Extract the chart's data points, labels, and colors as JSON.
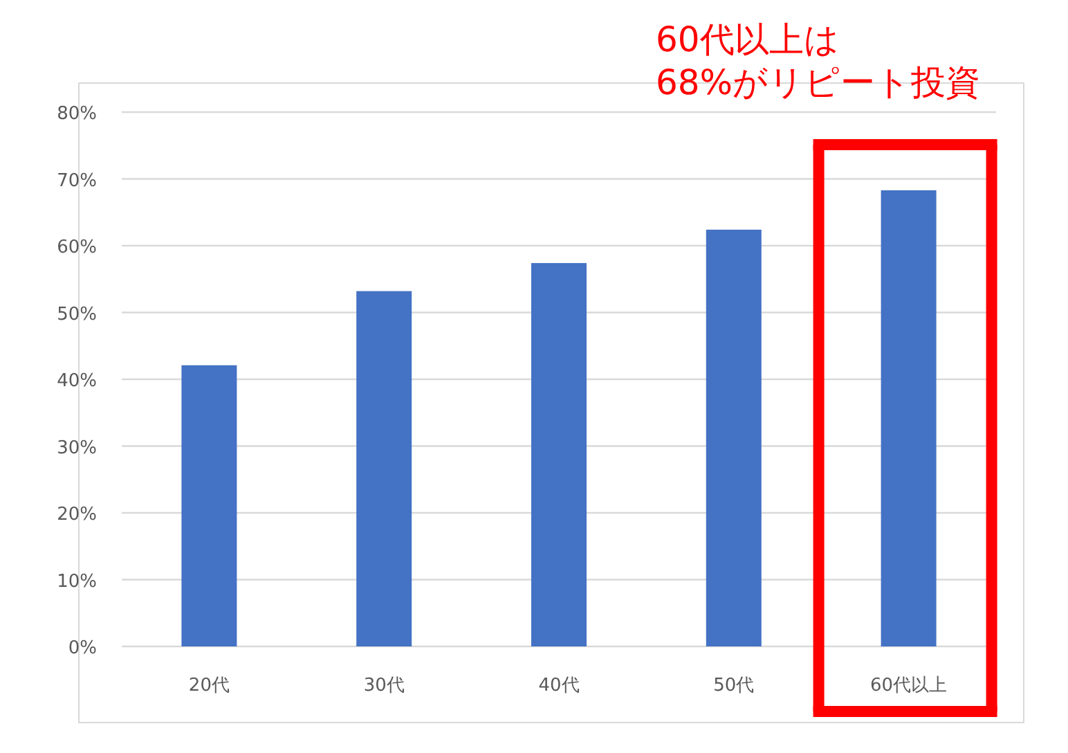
{
  "chart_data": {
    "type": "bar",
    "categories": [
      "20代",
      "30代",
      "40代",
      "50代",
      "60代以上"
    ],
    "values": [
      42.1,
      53.2,
      57.4,
      62.4,
      68.3
    ],
    "color": "#4472c4",
    "ylim": [
      0,
      80
    ],
    "yticks": [
      {
        "value": 0,
        "label": "0%"
      },
      {
        "value": 10,
        "label": "10%"
      },
      {
        "value": 20,
        "label": "20%"
      },
      {
        "value": 30,
        "label": "30%"
      },
      {
        "value": 40,
        "label": "40%"
      },
      {
        "value": 50,
        "label": "50%"
      },
      {
        "value": 60,
        "label": "60%"
      },
      {
        "value": 70,
        "label": "70%"
      },
      {
        "value": 80,
        "label": "80%"
      }
    ],
    "grid": "y",
    "annotations": [
      {
        "text": "60代以上は\n68%がリピート投資",
        "x": "60代以上",
        "y": 68.3
      }
    ]
  }
}
